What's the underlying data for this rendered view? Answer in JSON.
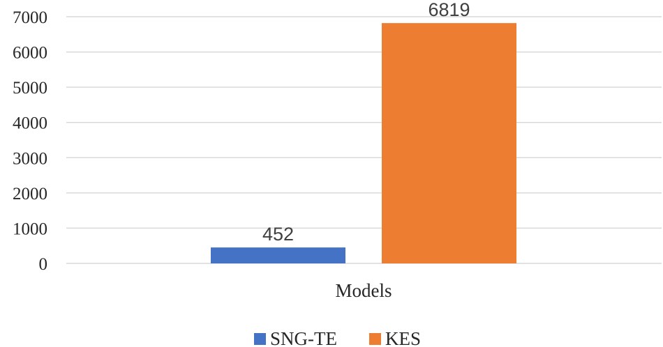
{
  "chart_data": {
    "type": "bar",
    "categories": [
      "Models"
    ],
    "series": [
      {
        "name": "SNG-TE",
        "values": [
          452
        ],
        "color": "#4472c4"
      },
      {
        "name": "KES",
        "values": [
          6819
        ],
        "color": "#ed7d31"
      }
    ],
    "ylim": [
      0,
      7000
    ],
    "yticks": [
      0,
      1000,
      2000,
      3000,
      4000,
      5000,
      6000,
      7000
    ],
    "title": "",
    "xlabel": "",
    "ylabel": "",
    "grid": true,
    "legend_position": "bottom",
    "data_labels": [
      "452",
      "6819"
    ]
  }
}
